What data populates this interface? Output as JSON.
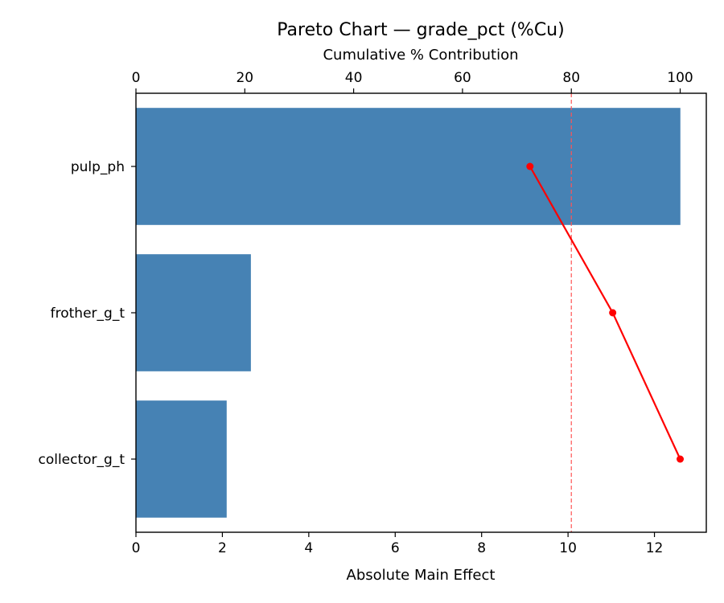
{
  "chart_data": {
    "type": "bar",
    "orientation": "horizontal",
    "title": "Pareto Chart — grade_pct (%Cu)",
    "xlabel": "Absolute Main Effect",
    "x2label": "Cumulative % Contribution",
    "categories": [
      "pulp_ph",
      "frother_g_t",
      "collector_g_t"
    ],
    "values": [
      12.6,
      2.66,
      2.1
    ],
    "xlim": [
      0,
      13.2
    ],
    "xticks": [
      0,
      2,
      4,
      6,
      8,
      10,
      12
    ],
    "x2lim": [
      0,
      104.8
    ],
    "x2ticks": [
      0,
      20,
      40,
      60,
      80,
      100
    ],
    "cumulative": {
      "name": "Cumulative %",
      "values": [
        72.4,
        87.6,
        100.0
      ],
      "color": "#ff0000"
    },
    "threshold": {
      "value": 80,
      "color": "#ff5555"
    },
    "bar_color": "#4682b4",
    "grid": false,
    "legend": "none"
  }
}
